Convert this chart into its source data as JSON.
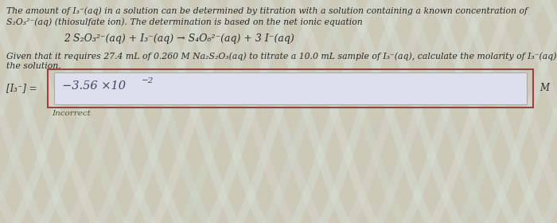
{
  "bg_color": "#ccc9b8",
  "text_color": "#2a2a2a",
  "text_lines": [
    "The amount of I₃⁻(aq) in a solution can be determined by titration with a solution containing a known concentration of",
    "S₂O₃²⁻(aq) (thiosulfate ion). The determination is based on the net ionic equation"
  ],
  "equation": "2 S₂O₃²⁻(aq) + I₃⁻(aq) → S₄O₆²⁻(aq) + 3 I⁻(aq)",
  "given_line1": "Given that it requires 27.4 mL of 0.260 M Na₂S₂O₃(aq) to titrate a 10.0 mL sample of I₃⁻(aq), calculate the molarity of I₃⁻(aq) in",
  "given_line2": "the solution.",
  "label_left": "[I₃⁻] =",
  "answer_text": "−3.56 ×10",
  "answer_exp": "−2",
  "unit_right": "M",
  "incorrect_label": "Incorrect",
  "box_outer_color": "#a04040",
  "box_inner_bg": "#dde0ec",
  "answer_color": "#444466",
  "font_size_body": 7.8,
  "font_size_eq": 9.0,
  "font_size_answer": 10.5,
  "font_size_label": 8.5,
  "font_size_incorrect": 7.5
}
